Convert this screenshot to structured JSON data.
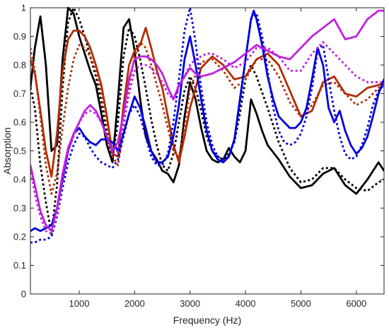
{
  "chart_data": {
    "type": "line",
    "title": "",
    "xlabel": "Frequency (Hz)",
    "ylabel": "Absorption",
    "xlim": [
      120,
      6500
    ],
    "ylim": [
      0,
      1
    ],
    "xticks": [
      1000,
      2000,
      3000,
      4000,
      5000,
      6000
    ],
    "yticks": [
      0,
      0.1,
      0.2,
      0.3,
      0.4,
      0.5,
      0.6,
      0.7,
      0.8,
      0.9,
      1
    ],
    "xtick_labels": [
      "1000",
      "2000",
      "3000",
      "4000",
      "5000",
      "6000"
    ],
    "ytick_labels": [
      "0",
      "0.1",
      "0.2",
      "0.3",
      "0.4",
      "0.5",
      "0.6",
      "0.7",
      "0.8",
      "0.9",
      "1"
    ],
    "grid": false,
    "legend": "none",
    "series": [
      {
        "color": "#000000",
        "style": "solid",
        "x": [
          120,
          200,
          300,
          400,
          500,
          600,
          700,
          800,
          900,
          1000,
          1100,
          1200,
          1300,
          1400,
          1500,
          1600,
          1700,
          1800,
          1900,
          2000,
          2100,
          2200,
          2300,
          2400,
          2500,
          2600,
          2700,
          2800,
          2900,
          3000,
          3100,
          3200,
          3300,
          3400,
          3500,
          3600,
          3700,
          3800,
          3900,
          4000,
          4100,
          4200,
          4300,
          4400,
          4600,
          4800,
          5000,
          5200,
          5400,
          5600,
          5800,
          6000,
          6200,
          6400,
          6500
        ],
        "y": [
          0.72,
          0.86,
          0.97,
          0.8,
          0.5,
          0.52,
          0.82,
          1.0,
          0.98,
          0.9,
          0.84,
          0.78,
          0.73,
          0.63,
          0.52,
          0.46,
          0.68,
          0.93,
          0.96,
          0.85,
          0.68,
          0.55,
          0.5,
          0.47,
          0.43,
          0.42,
          0.39,
          0.45,
          0.62,
          0.74,
          0.68,
          0.58,
          0.5,
          0.47,
          0.46,
          0.47,
          0.51,
          0.48,
          0.46,
          0.5,
          0.68,
          0.63,
          0.57,
          0.52,
          0.47,
          0.41,
          0.37,
          0.38,
          0.42,
          0.44,
          0.38,
          0.35,
          0.4,
          0.46,
          0.43
        ]
      },
      {
        "color": "#000000",
        "style": "dotted",
        "x": [
          120,
          200,
          300,
          400,
          500,
          600,
          700,
          800,
          900,
          1000,
          1100,
          1200,
          1300,
          1400,
          1500,
          1600,
          1700,
          1800,
          1900,
          2000,
          2100,
          2200,
          2300,
          2400,
          2500,
          2600,
          2700,
          2800,
          2900,
          3000,
          3100,
          3200,
          3300,
          3400,
          3500,
          3600,
          3700,
          3800,
          3900,
          4000,
          4100,
          4200,
          4400,
          4600,
          4800,
          5000,
          5200,
          5400,
          5600,
          5800,
          6000,
          6200,
          6400,
          6500
        ],
        "y": [
          0.72,
          0.65,
          0.45,
          0.32,
          0.21,
          0.38,
          0.72,
          0.95,
          1.0,
          0.96,
          0.9,
          0.83,
          0.76,
          0.67,
          0.56,
          0.47,
          0.6,
          0.83,
          0.93,
          0.9,
          0.82,
          0.72,
          0.61,
          0.52,
          0.45,
          0.43,
          0.49,
          0.6,
          0.71,
          0.76,
          0.72,
          0.64,
          0.55,
          0.5,
          0.48,
          0.47,
          0.49,
          0.53,
          0.63,
          0.75,
          0.8,
          0.76,
          0.65,
          0.53,
          0.44,
          0.39,
          0.4,
          0.44,
          0.44,
          0.4,
          0.37,
          0.36,
          0.39,
          0.4
        ]
      },
      {
        "color": "#b22d00",
        "style": "solid",
        "x": [
          120,
          200,
          300,
          400,
          500,
          600,
          700,
          800,
          900,
          1000,
          1100,
          1200,
          1300,
          1400,
          1500,
          1600,
          1700,
          1800,
          1900,
          2000,
          2100,
          2200,
          2300,
          2400,
          2500,
          2600,
          2700,
          2800,
          2900,
          3000,
          3200,
          3400,
          3600,
          3800,
          4000,
          4200,
          4400,
          4600,
          4800,
          5000,
          5200,
          5400,
          5600,
          5800,
          6000,
          6200,
          6400,
          6500
        ],
        "y": [
          0.82,
          0.77,
          0.64,
          0.5,
          0.41,
          0.56,
          0.78,
          0.89,
          0.92,
          0.92,
          0.9,
          0.86,
          0.8,
          0.73,
          0.62,
          0.49,
          0.48,
          0.66,
          0.8,
          0.85,
          0.87,
          0.93,
          0.86,
          0.78,
          0.72,
          0.62,
          0.52,
          0.46,
          0.55,
          0.65,
          0.79,
          0.83,
          0.8,
          0.75,
          0.76,
          0.82,
          0.84,
          0.8,
          0.71,
          0.62,
          0.64,
          0.74,
          0.76,
          0.7,
          0.69,
          0.72,
          0.73,
          0.74
        ]
      },
      {
        "color": "#b22d00",
        "style": "dotted",
        "x": [
          120,
          200,
          300,
          400,
          500,
          600,
          700,
          800,
          900,
          1000,
          1100,
          1200,
          1300,
          1400,
          1500,
          1600,
          1700,
          1800,
          1900,
          2000,
          2100,
          2200,
          2300,
          2400,
          2500,
          2600,
          2700,
          2800,
          2900,
          3000,
          3200,
          3400,
          3600,
          3800,
          4000,
          4200,
          4400,
          4600,
          4800,
          5000,
          5200,
          5400,
          5600,
          5800,
          6000,
          6200,
          6400,
          6500
        ],
        "y": [
          0.86,
          0.78,
          0.62,
          0.45,
          0.35,
          0.42,
          0.58,
          0.72,
          0.82,
          0.87,
          0.86,
          0.83,
          0.78,
          0.7,
          0.6,
          0.48,
          0.45,
          0.58,
          0.73,
          0.83,
          0.88,
          0.86,
          0.8,
          0.73,
          0.66,
          0.58,
          0.5,
          0.48,
          0.58,
          0.72,
          0.81,
          0.82,
          0.78,
          0.72,
          0.75,
          0.82,
          0.82,
          0.76,
          0.67,
          0.62,
          0.66,
          0.73,
          0.74,
          0.7,
          0.66,
          0.68,
          0.72,
          0.73
        ]
      },
      {
        "color": "#0000dd",
        "style": "solid",
        "x": [
          120,
          200,
          300,
          400,
          500,
          600,
          700,
          800,
          900,
          1000,
          1100,
          1200,
          1300,
          1400,
          1500,
          1600,
          1700,
          1800,
          1900,
          2000,
          2100,
          2200,
          2300,
          2400,
          2500,
          2600,
          2700,
          2800,
          2900,
          3000,
          3100,
          3200,
          3300,
          3400,
          3500,
          3600,
          3700,
          3800,
          3900,
          4000,
          4100,
          4150,
          4200,
          4300,
          4400,
          4500,
          4600,
          4700,
          4800,
          4900,
          5000,
          5100,
          5200,
          5300,
          5400,
          5500,
          5600,
          5700,
          5800,
          5900,
          6000,
          6100,
          6200,
          6300,
          6400,
          6500
        ],
        "y": [
          0.22,
          0.23,
          0.22,
          0.23,
          0.24,
          0.3,
          0.4,
          0.5,
          0.56,
          0.58,
          0.55,
          0.53,
          0.52,
          0.54,
          0.54,
          0.53,
          0.5,
          0.56,
          0.63,
          0.69,
          0.65,
          0.58,
          0.5,
          0.46,
          0.46,
          0.48,
          0.55,
          0.66,
          0.82,
          0.9,
          0.8,
          0.68,
          0.57,
          0.5,
          0.47,
          0.46,
          0.48,
          0.54,
          0.68,
          0.82,
          0.96,
          0.99,
          0.96,
          0.87,
          0.76,
          0.68,
          0.62,
          0.6,
          0.58,
          0.58,
          0.6,
          0.65,
          0.75,
          0.86,
          0.8,
          0.65,
          0.6,
          0.64,
          0.57,
          0.52,
          0.49,
          0.51,
          0.55,
          0.62,
          0.7,
          0.75
        ]
      },
      {
        "color": "#0000dd",
        "style": "dotted",
        "x": [
          120,
          200,
          300,
          400,
          500,
          600,
          700,
          800,
          900,
          1000,
          1100,
          1200,
          1300,
          1400,
          1500,
          1600,
          1700,
          1800,
          1900,
          2000,
          2100,
          2200,
          2300,
          2400,
          2500,
          2600,
          2700,
          2800,
          2900,
          3000,
          3100,
          3200,
          3300,
          3400,
          3500,
          3600,
          3700,
          3800,
          3900,
          4000,
          4100,
          4200,
          4300,
          4400,
          4500,
          4600,
          4700,
          4800,
          4900,
          5000,
          5100,
          5200,
          5300,
          5400,
          5500,
          5600,
          5700,
          5800,
          5900,
          6000,
          6100,
          6200,
          6300,
          6400,
          6500
        ],
        "y": [
          0.18,
          0.18,
          0.19,
          0.19,
          0.2,
          0.27,
          0.37,
          0.46,
          0.52,
          0.56,
          0.55,
          0.51,
          0.48,
          0.46,
          0.45,
          0.44,
          0.47,
          0.55,
          0.63,
          0.66,
          0.62,
          0.55,
          0.48,
          0.45,
          0.45,
          0.49,
          0.6,
          0.75,
          0.92,
          1.0,
          0.88,
          0.72,
          0.6,
          0.52,
          0.48,
          0.47,
          0.48,
          0.54,
          0.66,
          0.82,
          0.96,
          0.98,
          0.9,
          0.78,
          0.65,
          0.57,
          0.53,
          0.52,
          0.53,
          0.56,
          0.62,
          0.72,
          0.85,
          0.87,
          0.75,
          0.64,
          0.55,
          0.49,
          0.47,
          0.48,
          0.52,
          0.58,
          0.66,
          0.71,
          0.73
        ]
      },
      {
        "color": "#c020e0",
        "style": "solid",
        "x": [
          120,
          200,
          300,
          400,
          500,
          600,
          700,
          800,
          900,
          1000,
          1100,
          1200,
          1300,
          1400,
          1500,
          1600,
          1700,
          1800,
          1900,
          2000,
          2100,
          2200,
          2300,
          2400,
          2500,
          2600,
          2700,
          2800,
          2900,
          3000,
          3100,
          3200,
          3400,
          3600,
          3800,
          4000,
          4200,
          4400,
          4600,
          4800,
          5000,
          5200,
          5400,
          5600,
          5800,
          6000,
          6200,
          6400,
          6500
        ],
        "y": [
          0.45,
          0.38,
          0.29,
          0.24,
          0.22,
          0.3,
          0.42,
          0.51,
          0.56,
          0.6,
          0.64,
          0.66,
          0.64,
          0.6,
          0.55,
          0.5,
          0.53,
          0.63,
          0.75,
          0.82,
          0.83,
          0.83,
          0.82,
          0.8,
          0.77,
          0.72,
          0.68,
          0.73,
          0.76,
          0.79,
          0.77,
          0.76,
          0.77,
          0.79,
          0.81,
          0.84,
          0.87,
          0.85,
          0.83,
          0.82,
          0.86,
          0.9,
          0.93,
          0.96,
          0.89,
          0.9,
          0.96,
          0.99,
          0.99
        ]
      },
      {
        "color": "#c020e0",
        "style": "dotted",
        "x": [
          120,
          200,
          300,
          400,
          500,
          600,
          700,
          800,
          900,
          1000,
          1100,
          1200,
          1300,
          1400,
          1500,
          1600,
          1700,
          1800,
          1900,
          2000,
          2100,
          2200,
          2300,
          2400,
          2500,
          2600,
          2700,
          2800,
          2900,
          3000,
          3100,
          3200,
          3300,
          3400,
          3600,
          3800,
          4000,
          4200,
          4400,
          4600,
          4800,
          5000,
          5200,
          5400,
          5600,
          5800,
          6000,
          6200,
          6400,
          6500
        ],
        "y": [
          0.44,
          0.35,
          0.27,
          0.22,
          0.21,
          0.28,
          0.4,
          0.5,
          0.55,
          0.6,
          0.63,
          0.64,
          0.63,
          0.6,
          0.55,
          0.49,
          0.5,
          0.6,
          0.7,
          0.78,
          0.8,
          0.8,
          0.79,
          0.77,
          0.74,
          0.7,
          0.68,
          0.72,
          0.76,
          0.8,
          0.82,
          0.83,
          0.84,
          0.84,
          0.82,
          0.79,
          0.81,
          0.86,
          0.86,
          0.83,
          0.78,
          0.78,
          0.84,
          0.88,
          0.84,
          0.8,
          0.76,
          0.74,
          0.74,
          0.74
        ]
      }
    ]
  }
}
